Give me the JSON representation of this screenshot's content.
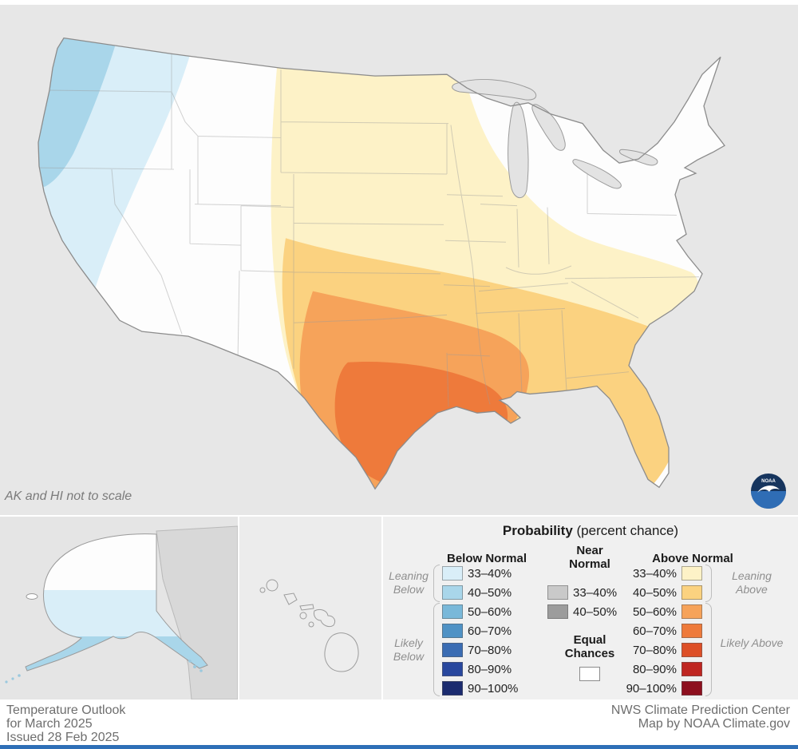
{
  "map": {
    "note": "AK and HI not to scale",
    "noaa_label": "NOAA",
    "regions": [
      {
        "area": "Coastal Pacific Northwest (WA, OR, far NW California)",
        "category": "Below Normal 40–50%"
      },
      {
        "area": "Inland Northwest, northern California, NW Nevada, Idaho",
        "category": "Below Normal 33–40%"
      },
      {
        "area": "Northern Plains through Midwest to Mid-Atlantic fringe",
        "category": "Above Normal 33–40%"
      },
      {
        "area": "Central-southern Plains, Lower Mississippi Valley, Southeast, Florida",
        "category": "Above Normal 40–50%"
      },
      {
        "area": "Most of Texas, southern Oklahoma, Louisiana, southern Mississippi",
        "category": "Above Normal 50–60%"
      },
      {
        "area": "Central and southern Texas and southern Louisiana",
        "category": "Above Normal 60–70%"
      },
      {
        "area": "Southern and central Alaska",
        "category": "Below Normal 33–40% to 40–50%"
      },
      {
        "area": "Interior West, Great Lakes, Northeast, Hawaii",
        "category": "Equal Chances"
      }
    ]
  },
  "legend": {
    "title": {
      "bold": "Probability",
      "rest": " (percent chance)"
    },
    "below": {
      "header": "Below Normal",
      "leaning_label": "Leaning Below",
      "likely_label": "Likely Below",
      "rows": [
        {
          "range": "33–40%",
          "color": "#d9eef8"
        },
        {
          "range": "40–50%",
          "color": "#a9d6ea"
        },
        {
          "range": "50–60%",
          "color": "#79b8d9"
        },
        {
          "range": "60–70%",
          "color": "#4f92c5"
        },
        {
          "range": "70–80%",
          "color": "#3a6cb3"
        },
        {
          "range": "80–90%",
          "color": "#28479e"
        },
        {
          "range": "90–100%",
          "color": "#1b2b6f"
        }
      ]
    },
    "near": {
      "header": "Near Normal",
      "equal_label": "Equal Chances",
      "equal_color": "#ffffff",
      "rows": [
        {
          "range": "33–40%",
          "color": "#c9c9c9"
        },
        {
          "range": "40–50%",
          "color": "#9c9c9c"
        }
      ]
    },
    "above": {
      "header": "Above Normal",
      "leaning_label": "Leaning Above",
      "likely_label": "Likely Above",
      "rows": [
        {
          "range": "33–40%",
          "color": "#fdf2c7"
        },
        {
          "range": "40–50%",
          "color": "#fbd280"
        },
        {
          "range": "50–60%",
          "color": "#f6a35a"
        },
        {
          "range": "60–70%",
          "color": "#ee7a3b"
        },
        {
          "range": "70–80%",
          "color": "#dd4f27"
        },
        {
          "range": "80–90%",
          "color": "#bf2621"
        },
        {
          "range": "90–100%",
          "color": "#8d0f1e"
        }
      ]
    }
  },
  "footer": {
    "left_lines": [
      "Temperature Outlook",
      "for March 2025",
      "Issued 28 Feb 2025"
    ],
    "right_lines": [
      "NWS Climate Prediction Center",
      "Map by NOAA Climate.gov"
    ]
  }
}
